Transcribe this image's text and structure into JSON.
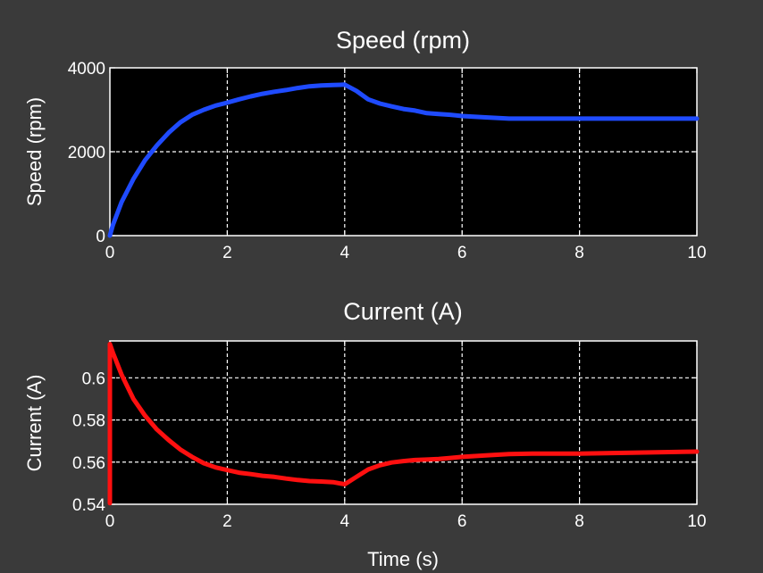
{
  "chart_data": [
    {
      "type": "line",
      "title": "Speed (rpm)",
      "xlabel": "",
      "ylabel": "Speed (rpm)",
      "xlim": [
        0,
        10
      ],
      "ylim": [
        0,
        4000
      ],
      "xticks": [
        0,
        2,
        4,
        6,
        8,
        10
      ],
      "yticks": [
        0,
        2000,
        4000
      ],
      "xtick_labels": [
        "0",
        "2",
        "4",
        "6",
        "8",
        "10"
      ],
      "ytick_labels": [
        "0",
        "2000",
        "4000"
      ],
      "grid": true,
      "background": "#000000",
      "series": [
        {
          "color": "#1f4bff",
          "x": [
            0,
            0.05,
            0.2,
            0.4,
            0.6,
            0.8,
            1.0,
            1.2,
            1.4,
            1.6,
            1.8,
            2.0,
            2.2,
            2.4,
            2.6,
            2.8,
            3.0,
            3.2,
            3.4,
            3.6,
            3.8,
            4.0,
            4.2,
            4.4,
            4.6,
            4.8,
            5.0,
            5.2,
            5.4,
            5.6,
            5.8,
            6.0,
            6.4,
            6.8,
            7.2,
            8.0,
            9.0,
            10.0
          ],
          "y": [
            0,
            250,
            800,
            1350,
            1800,
            2150,
            2450,
            2700,
            2880,
            3000,
            3100,
            3170,
            3250,
            3320,
            3380,
            3430,
            3470,
            3520,
            3560,
            3580,
            3590,
            3600,
            3450,
            3250,
            3150,
            3080,
            3020,
            2980,
            2920,
            2900,
            2880,
            2850,
            2820,
            2790,
            2790,
            2790,
            2790,
            2790
          ]
        }
      ]
    },
    {
      "type": "line",
      "title": "Current (A)",
      "xlabel": "Time (s)",
      "ylabel": "Current (A)",
      "xlim": [
        0,
        10
      ],
      "ylim": [
        0.54,
        0.6175
      ],
      "xticks": [
        0,
        2,
        4,
        6,
        8,
        10
      ],
      "yticks": [
        0.54,
        0.56,
        0.58,
        0.6
      ],
      "xtick_labels": [
        "0",
        "2",
        "4",
        "6",
        "8",
        "10"
      ],
      "ytick_labels": [
        "0.54",
        "0.56",
        "0.58",
        "0.6"
      ],
      "grid": true,
      "background": "#000000",
      "series": [
        {
          "color": "#ff1010",
          "x": [
            0,
            0,
            0.05,
            0.2,
            0.4,
            0.6,
            0.8,
            1.0,
            1.2,
            1.4,
            1.6,
            1.8,
            2.0,
            2.2,
            2.4,
            2.6,
            2.8,
            3.0,
            3.2,
            3.4,
            3.6,
            3.8,
            4.0,
            4.2,
            4.4,
            4.6,
            4.8,
            5.0,
            5.2,
            5.4,
            5.6,
            5.8,
            6.0,
            6.4,
            6.8,
            7.2,
            8.0,
            9.0,
            10.0
          ],
          "y": [
            0.5405,
            0.616,
            0.612,
            0.6015,
            0.59,
            0.582,
            0.5755,
            0.5705,
            0.566,
            0.5625,
            0.5595,
            0.5575,
            0.5562,
            0.555,
            0.5543,
            0.5535,
            0.553,
            0.5522,
            0.5515,
            0.551,
            0.5508,
            0.5505,
            0.5495,
            0.553,
            0.5565,
            0.5585,
            0.5598,
            0.5605,
            0.561,
            0.5612,
            0.5615,
            0.562,
            0.5625,
            0.5632,
            0.5638,
            0.564,
            0.564,
            0.5645,
            0.565
          ]
        }
      ]
    }
  ]
}
